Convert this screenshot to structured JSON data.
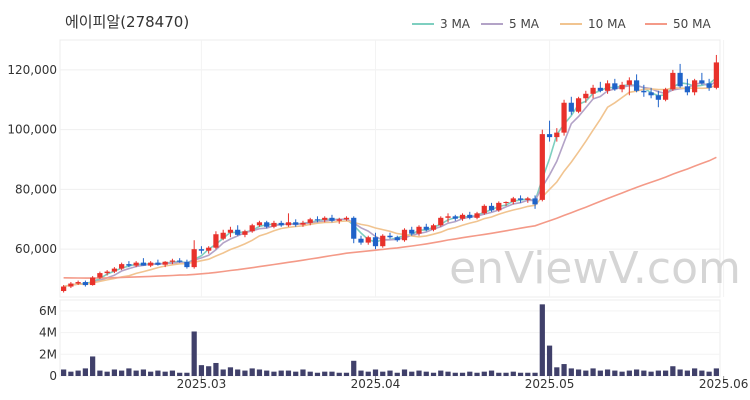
{
  "chart_data": {
    "type": "candlestick",
    "title": "에이피알(278470)",
    "watermark": "enViewV.com",
    "legend": [
      {
        "label": "3 MA",
        "color": "#7ecfc0"
      },
      {
        "label": "5 MA",
        "color": "#b3a3c7"
      },
      {
        "label": "10 MA",
        "color": "#f1c490"
      },
      {
        "label": "50 MA",
        "color": "#f49a88"
      }
    ],
    "colors": {
      "up": "#e8312b",
      "down": "#1f63c9",
      "volume": "#40406a"
    },
    "price_axis": {
      "ylim": [
        44000,
        130000
      ],
      "ticks": [
        60000,
        80000,
        100000,
        120000
      ],
      "tick_labels": [
        "60,000",
        "80,000",
        "100,000",
        "120,000"
      ]
    },
    "volume_axis": {
      "ylim": [
        0,
        7000000
      ],
      "ticks": [
        0,
        2000000,
        4000000,
        6000000
      ],
      "tick_labels": [
        "0",
        "2M",
        "4M",
        "6M"
      ]
    },
    "x_labels": [
      {
        "index": 19,
        "label": "2025.03"
      },
      {
        "index": 43,
        "label": "2025.04"
      },
      {
        "index": 67,
        "label": "2025.05"
      },
      {
        "index": 91,
        "label": "2025.06"
      }
    ],
    "candles": [
      [
        46000,
        48000,
        45500,
        47500
      ],
      [
        47500,
        49000,
        47000,
        48500
      ],
      [
        48500,
        49500,
        48000,
        49000
      ],
      [
        49000,
        49500,
        47500,
        48000
      ],
      [
        48000,
        51000,
        47800,
        50500
      ],
      [
        50500,
        52500,
        50000,
        52000
      ],
      [
        52000,
        53000,
        51200,
        52500
      ],
      [
        52500,
        54000,
        52000,
        53500
      ],
      [
        53500,
        55500,
        53000,
        55000
      ],
      [
        55000,
        56000,
        54000,
        54500
      ],
      [
        54500,
        56000,
        54000,
        55500
      ],
      [
        55500,
        57000,
        54500,
        54500
      ],
      [
        54500,
        56000,
        54000,
        55500
      ],
      [
        55500,
        56500,
        54500,
        54800
      ],
      [
        54800,
        56000,
        54000,
        55800
      ],
      [
        55800,
        56800,
        55000,
        56200
      ],
      [
        56200,
        57000,
        55500,
        55800
      ],
      [
        55800,
        56500,
        53500,
        54000
      ],
      [
        54000,
        63000,
        53500,
        60000
      ],
      [
        60000,
        61000,
        58500,
        59500
      ],
      [
        59500,
        61000,
        58500,
        60500
      ],
      [
        60500,
        66000,
        60000,
        65000
      ],
      [
        63500,
        66500,
        63000,
        65500
      ],
      [
        65500,
        67500,
        64000,
        66500
      ],
      [
        66500,
        68000,
        64500,
        64800
      ],
      [
        64800,
        66500,
        64000,
        66000
      ],
      [
        66000,
        68500,
        65500,
        68000
      ],
      [
        68000,
        69500,
        67500,
        69000
      ],
      [
        69000,
        69500,
        67000,
        67500
      ],
      [
        67500,
        69500,
        67000,
        68800
      ],
      [
        68800,
        69500,
        67500,
        68000
      ],
      [
        68000,
        72000,
        67500,
        69000
      ],
      [
        69000,
        70000,
        67500,
        68200
      ],
      [
        68200,
        69500,
        67500,
        68800
      ],
      [
        68800,
        70500,
        68000,
        70000
      ],
      [
        70000,
        71000,
        69000,
        69800
      ],
      [
        69800,
        71000,
        69000,
        70500
      ],
      [
        70500,
        71500,
        69000,
        69500
      ],
      [
        69500,
        70500,
        68500,
        70000
      ],
      [
        70000,
        71000,
        69500,
        70500
      ],
      [
        70500,
        71000,
        62000,
        63500
      ],
      [
        63500,
        64500,
        61500,
        62200
      ],
      [
        62200,
        64500,
        61500,
        64000
      ],
      [
        64000,
        65500,
        60000,
        61000
      ],
      [
        61000,
        65000,
        60500,
        64500
      ],
      [
        64500,
        65500,
        63500,
        64000
      ],
      [
        64000,
        64500,
        62500,
        63000
      ],
      [
        63000,
        67000,
        62500,
        66500
      ],
      [
        66500,
        67500,
        64500,
        65200
      ],
      [
        65200,
        68000,
        64500,
        67500
      ],
      [
        67500,
        68500,
        66000,
        66500
      ],
      [
        66500,
        68500,
        66000,
        68000
      ],
      [
        68000,
        71000,
        67500,
        70500
      ],
      [
        70500,
        72000,
        69000,
        71000
      ],
      [
        71000,
        71500,
        69500,
        70200
      ],
      [
        70200,
        72000,
        69500,
        71500
      ],
      [
        71500,
        72500,
        70000,
        70500
      ],
      [
        70500,
        72500,
        70000,
        72000
      ],
      [
        72000,
        75000,
        71500,
        74500
      ],
      [
        74500,
        75500,
        72500,
        73000
      ],
      [
        73000,
        76000,
        72500,
        75500
      ],
      [
        75500,
        76000,
        74500,
        75800
      ],
      [
        75800,
        77500,
        75000,
        77000
      ],
      [
        77000,
        78000,
        75500,
        76500
      ],
      [
        76500,
        77500,
        75500,
        77000
      ],
      [
        77000,
        78000,
        73500,
        75000
      ],
      [
        76500,
        100000,
        76000,
        98500
      ],
      [
        98500,
        103000,
        96000,
        97500
      ],
      [
        97500,
        100500,
        96000,
        99000
      ],
      [
        99000,
        110000,
        98000,
        109000
      ],
      [
        109000,
        111000,
        105000,
        106000
      ],
      [
        106000,
        111000,
        105500,
        110500
      ],
      [
        110500,
        113000,
        109000,
        112000
      ],
      [
        112000,
        115000,
        110500,
        114000
      ],
      [
        114000,
        116000,
        112500,
        113000
      ],
      [
        113000,
        116500,
        112000,
        115500
      ],
      [
        115500,
        117000,
        113000,
        113500
      ],
      [
        113500,
        116000,
        112500,
        115000
      ],
      [
        115000,
        117500,
        111500,
        116500
      ],
      [
        116500,
        118500,
        112500,
        113000
      ],
      [
        113000,
        115000,
        111000,
        112500
      ],
      [
        112500,
        114000,
        110500,
        111500
      ],
      [
        111500,
        113000,
        107500,
        110000
      ],
      [
        110000,
        114000,
        109500,
        113500
      ],
      [
        113500,
        120000,
        113000,
        119000
      ],
      [
        119000,
        122000,
        114000,
        114500
      ],
      [
        114500,
        117000,
        111500,
        112500
      ],
      [
        112500,
        117000,
        111500,
        116500
      ],
      [
        116500,
        119000,
        115000,
        115500
      ],
      [
        115500,
        117000,
        113000,
        114000
      ],
      [
        114000,
        125000,
        113500,
        122500
      ]
    ],
    "volume": [
      600000,
      400000,
      500000,
      700000,
      1800000,
      500000,
      400000,
      600000,
      500000,
      700000,
      500000,
      600000,
      400000,
      500000,
      400000,
      500000,
      300000,
      300000,
      4100000,
      1000000,
      900000,
      1200000,
      600000,
      800000,
      600000,
      500000,
      700000,
      600000,
      500000,
      400000,
      500000,
      500000,
      400000,
      600000,
      400000,
      300000,
      400000,
      400000,
      300000,
      300000,
      1400000,
      500000,
      400000,
      600000,
      400000,
      500000,
      300000,
      600000,
      400000,
      500000,
      400000,
      300000,
      500000,
      400000,
      300000,
      300000,
      400000,
      300000,
      400000,
      500000,
      300000,
      300000,
      400000,
      300000,
      300000,
      300000,
      6600000,
      2800000,
      800000,
      1100000,
      700000,
      600000,
      500000,
      700000,
      500000,
      600000,
      500000,
      400000,
      500000,
      600000,
      500000,
      400000,
      500000,
      500000,
      900000,
      600000,
      500000,
      700000,
      500000,
      400000,
      700000
    ]
  }
}
